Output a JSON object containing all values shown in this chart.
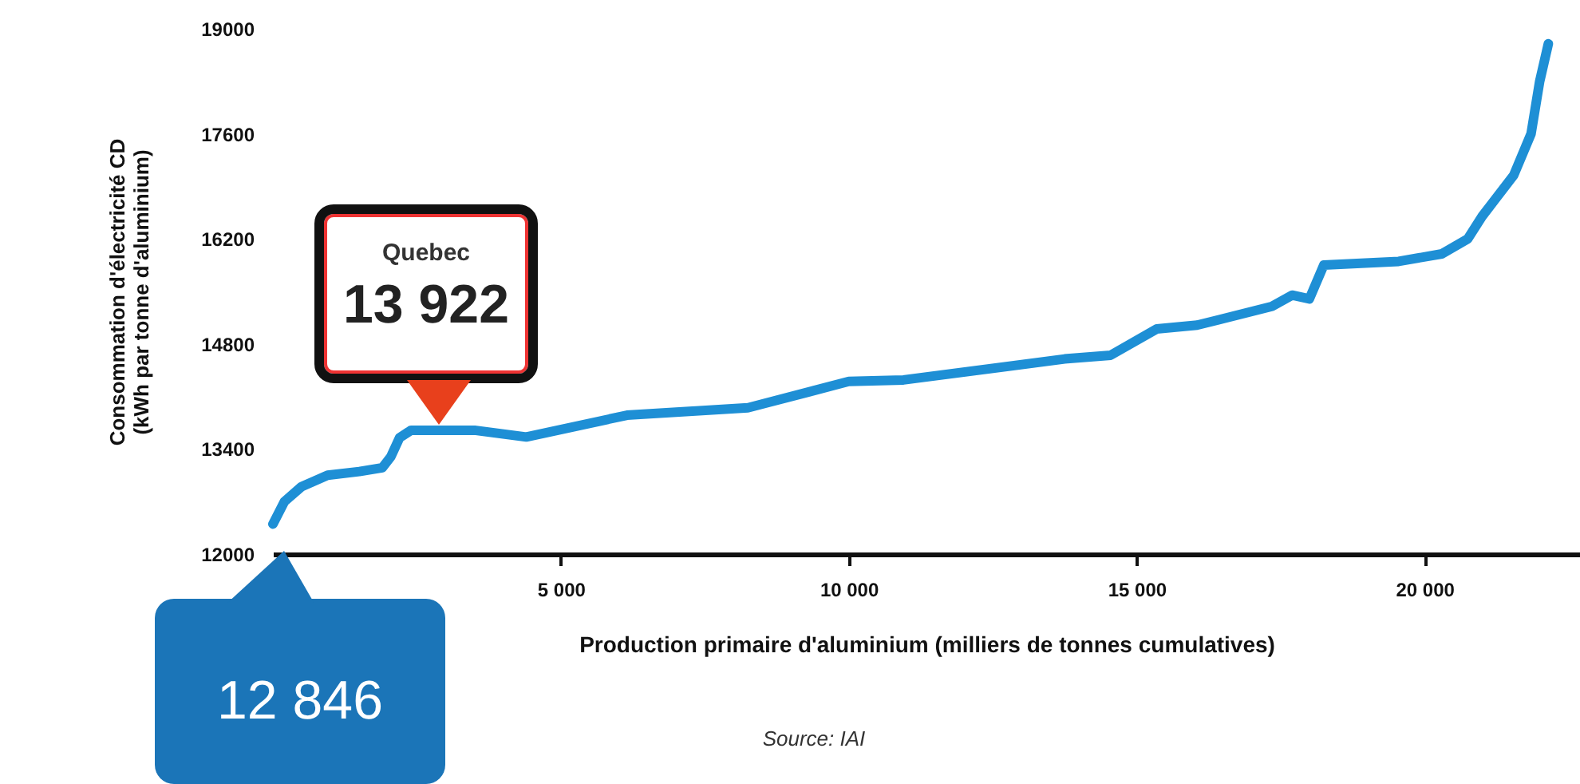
{
  "chart_data": {
    "type": "line",
    "xlabel": "Production primaire d'aluminium (milliers de tonnes cumulatives)",
    "ylabel": "Consommation d'électricité CD\n(kWh par tonne d'aluminium)",
    "annotations": [
      "Quebec",
      "13 922",
      "12 846",
      "Source: IAI"
    ],
    "x": [
      0,
      200,
      500,
      950,
      1500,
      1900,
      2050,
      2200,
      2400,
      3500,
      4400,
      6150,
      8250,
      10000,
      10950,
      13750,
      14550,
      15350,
      16050,
      17350,
      17700,
      18000,
      18250,
      19550,
      20300,
      20750,
      21000,
      21550,
      21850,
      22000,
      22150
    ],
    "series": [
      {
        "color": "#1e8fd5",
        "values": [
          12400,
          12700,
          12900,
          13050,
          13100,
          13150,
          13300,
          13550,
          13650,
          13650,
          13560,
          13850,
          13950,
          14300,
          14320,
          14600,
          14650,
          15000,
          15050,
          15300,
          15450,
          15400,
          15850,
          15900,
          16000,
          16200,
          16500,
          17050,
          17600,
          18300,
          18800
        ]
      }
    ],
    "xlim": [
      0,
      22700
    ],
    "xticks": [
      {
        "value": 5000,
        "label": "5 000"
      },
      {
        "value": 10000,
        "label": "10 000"
      },
      {
        "value": 15000,
        "label": "15 000"
      },
      {
        "value": 20000,
        "label": "20 000"
      }
    ],
    "ylim": [
      12000,
      19000
    ],
    "yticks": [
      12000,
      13400,
      14800,
      16200,
      17600,
      19000
    ],
    "grid": false,
    "marker": "none",
    "line_style": "solid"
  }
}
